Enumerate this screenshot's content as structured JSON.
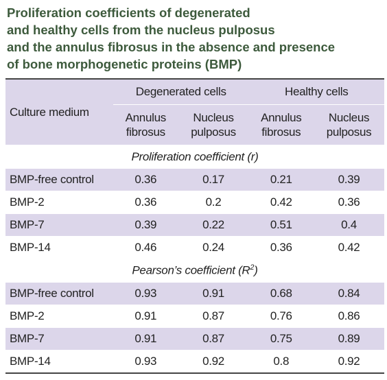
{
  "header": {
    "title_lines": [
      "Proliferation coefficients of degenerated",
      "and healthy cells from the nucleus pulposus",
      "and the annulus fibrosus in the absence and presence",
      "of bone morphogenetic proteins (BMP)"
    ]
  },
  "table": {
    "corner": "Culture medium",
    "groups": [
      "Degenerated cells",
      "Healthy cells"
    ],
    "subheaders": [
      [
        "Annulus",
        "fibrosus"
      ],
      [
        "Nucleus",
        "pulposus"
      ],
      [
        "Annulus",
        "fibrosus"
      ],
      [
        "Nucleus",
        "pulposus"
      ]
    ],
    "sections": [
      {
        "label": "Proliferation coefficient (r)",
        "rows": [
          [
            "BMP-free control",
            0.36,
            0.17,
            0.21,
            0.39
          ],
          [
            "BMP-2",
            0.36,
            0.2,
            0.42,
            0.36
          ],
          [
            "BMP-7",
            0.39,
            0.22,
            0.51,
            0.4
          ],
          [
            "BMP-14",
            0.46,
            0.24,
            0.36,
            0.42
          ]
        ]
      },
      {
        "label": "Pearson’s coefficient (R",
        "label_sup": "2",
        "label_end": ")",
        "rows": [
          [
            "BMP-free control",
            0.93,
            0.91,
            0.68,
            0.84
          ],
          [
            "BMP-2",
            0.91,
            0.87,
            0.76,
            0.86
          ],
          [
            "BMP-7",
            0.91,
            0.87,
            0.75,
            0.89
          ],
          [
            "BMP-14",
            0.93,
            0.92,
            0.8,
            0.92
          ]
        ]
      }
    ]
  }
}
